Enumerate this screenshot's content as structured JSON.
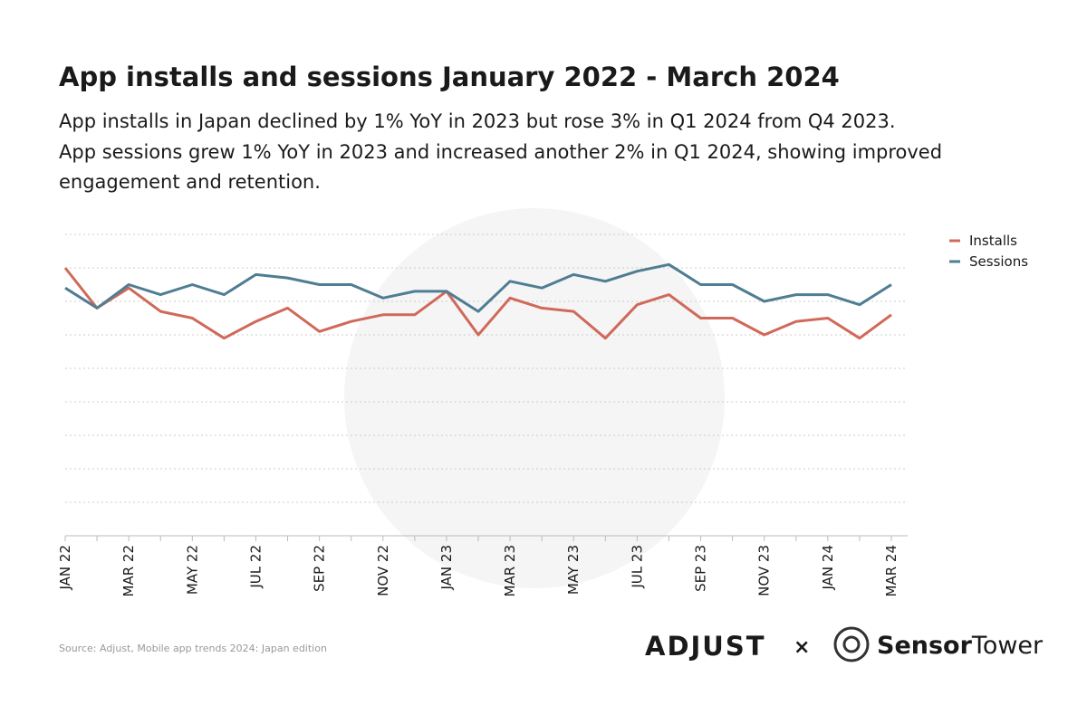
{
  "chart_data": {
    "type": "line",
    "title": "App installs and sessions January 2022 - March 2024",
    "subtitle_lines": [
      "App installs in Japan declined by 1% YoY in 2023 but rose 3% in Q1 2024 from Q4 2023.",
      "App sessions grew 1% YoY in 2023 and increased another 2% in Q1 2024, showing improved",
      "engagement and retention."
    ],
    "categories": [
      "JAN 22",
      null,
      "MAR 22",
      null,
      "MAY 22",
      null,
      "JUL 22",
      null,
      "SEP 22",
      null,
      "NOV 22",
      null,
      "JAN 23",
      null,
      "MAR 23",
      null,
      "MAY 23",
      null,
      "JUL 23",
      null,
      "SEP 23",
      null,
      "NOV 23",
      null,
      "JAN 24",
      null,
      "MAR 24"
    ],
    "series": [
      {
        "name": "Installs",
        "color": "#d0695a",
        "values": [
          8.0,
          6.8,
          7.4,
          6.7,
          6.5,
          5.9,
          6.4,
          6.8,
          6.1,
          6.4,
          6.6,
          6.6,
          7.3,
          6.0,
          7.1,
          6.8,
          6.7,
          5.9,
          6.9,
          7.2,
          6.5,
          6.5,
          6.0,
          6.4,
          6.5,
          5.9,
          6.6
        ]
      },
      {
        "name": "Sessions",
        "color": "#4f7d92",
        "values": [
          7.4,
          6.8,
          7.5,
          7.2,
          7.5,
          7.2,
          7.8,
          7.7,
          7.5,
          7.5,
          7.1,
          7.3,
          7.3,
          6.7,
          7.6,
          7.4,
          7.8,
          7.6,
          7.9,
          8.1,
          7.5,
          7.5,
          7.0,
          7.2,
          7.2,
          6.9,
          7.5
        ]
      }
    ],
    "ylim": [
      0,
      9
    ],
    "yticks": [
      1,
      2,
      3,
      4,
      5,
      6,
      7,
      8,
      9
    ],
    "grid": true,
    "legend": "top-right",
    "source": "Source: Adjust, Mobile app trends 2024: Japan edition",
    "logos": {
      "adjust": "ADJUST",
      "times": "×",
      "sensor": "Sensor",
      "tower": "Tower"
    }
  }
}
